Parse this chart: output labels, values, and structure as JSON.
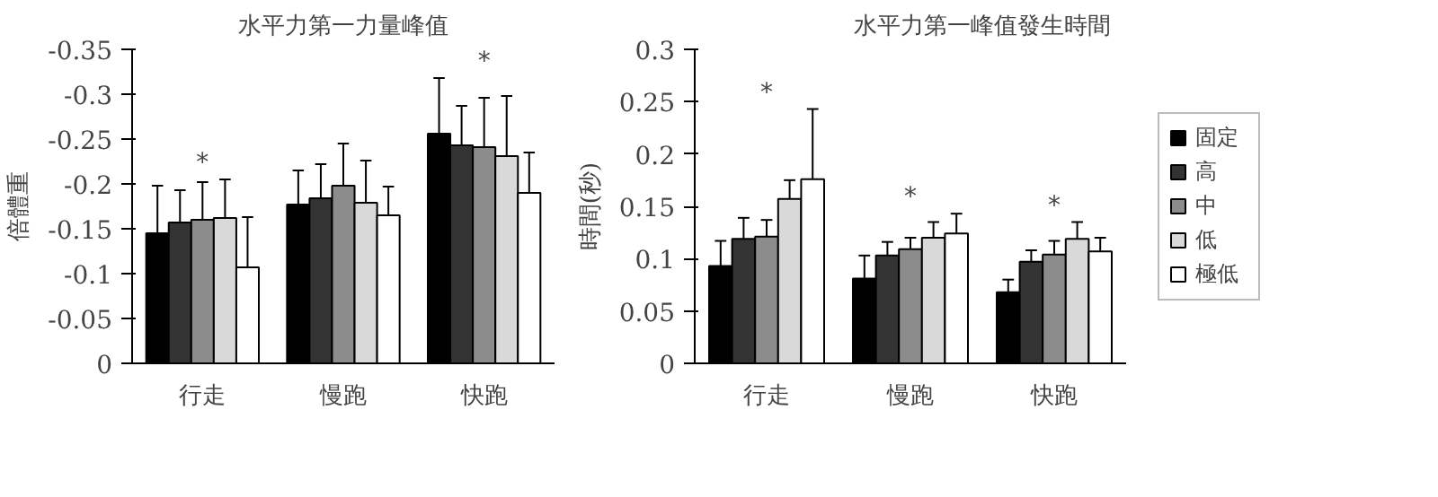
{
  "chart_data": [
    {
      "type": "bar",
      "title": "水平力第一力量峰值",
      "ylabel": "倍體重",
      "categories": [
        "行走",
        "慢跑",
        "快跑"
      ],
      "ylim": [
        0,
        -0.35
      ],
      "yticks": [
        0,
        -0.05,
        -0.1,
        -0.15,
        -0.2,
        -0.25,
        -0.3,
        -0.35
      ],
      "grid": false,
      "legend": false,
      "series": [
        {
          "color": "#000000",
          "values": [
            -0.145,
            -0.177,
            -0.256
          ],
          "errors": [
            [
              -0.198,
              -0.145
            ],
            [
              -0.215,
              -0.177
            ],
            [
              -0.318,
              -0.256
            ]
          ]
        },
        {
          "color": "#333333",
          "values": [
            -0.157,
            -0.184,
            -0.243
          ],
          "errors": [
            [
              -0.193,
              -0.157
            ],
            [
              -0.222,
              -0.184
            ],
            [
              -0.287,
              -0.243
            ]
          ]
        },
        {
          "color": "#8c8c8c",
          "values": [
            -0.16,
            -0.198,
            -0.241
          ],
          "errors": [
            [
              -0.202,
              -0.16
            ],
            [
              -0.245,
              -0.198
            ],
            [
              -0.296,
              -0.241
            ]
          ]
        },
        {
          "color": "#d9d9d9",
          "values": [
            -0.162,
            -0.179,
            -0.231
          ],
          "errors": [
            [
              -0.205,
              -0.162
            ],
            [
              -0.226,
              -0.179
            ],
            [
              -0.298,
              -0.231
            ]
          ]
        },
        {
          "color": "#ffffff",
          "values": [
            -0.107,
            -0.165,
            -0.19
          ],
          "errors": [
            [
              -0.163,
              -0.107
            ],
            [
              -0.197,
              -0.165
            ],
            [
              -0.235,
              -0.19
            ]
          ]
        }
      ],
      "annotations": [
        "*",
        "*"
      ]
    },
    {
      "type": "bar",
      "title": "水平力第一峰值發生時間",
      "ylabel": "時間(秒)",
      "categories": [
        "行走",
        "慢跑",
        "快跑"
      ],
      "ylim": [
        0,
        0.3
      ],
      "yticks": [
        0,
        0.05,
        0.1,
        0.15,
        0.2,
        0.25,
        0.3
      ],
      "grid": false,
      "legend": "right",
      "series": [
        {
          "name": "固定",
          "color": "#000000",
          "values": [
            0.093,
            0.081,
            0.068
          ],
          "errors": [
            [
              0.093,
              0.117
            ],
            [
              0.081,
              0.103
            ],
            [
              0.068,
              0.08
            ]
          ]
        },
        {
          "name": "高",
          "color": "#333333",
          "values": [
            0.119,
            0.103,
            0.097
          ],
          "errors": [
            [
              0.119,
              0.139
            ],
            [
              0.103,
              0.116
            ],
            [
              0.097,
              0.108
            ]
          ]
        },
        {
          "name": "中",
          "color": "#8c8c8c",
          "values": [
            0.121,
            0.109,
            0.104
          ],
          "errors": [
            [
              0.121,
              0.137
            ],
            [
              0.109,
              0.12
            ],
            [
              0.104,
              0.117
            ]
          ]
        },
        {
          "name": "低",
          "color": "#d9d9d9",
          "values": [
            0.157,
            0.12,
            0.119
          ],
          "errors": [
            [
              0.157,
              0.175
            ],
            [
              0.12,
              0.135
            ],
            [
              0.119,
              0.135
            ]
          ]
        },
        {
          "name": "極低",
          "color": "#ffffff",
          "values": [
            0.176,
            0.124,
            0.107
          ],
          "errors": [
            [
              0.176,
              0.243
            ],
            [
              0.124,
              0.143
            ],
            [
              0.107,
              0.12
            ]
          ]
        }
      ],
      "annotations": [
        "*",
        "*",
        "*"
      ]
    }
  ]
}
